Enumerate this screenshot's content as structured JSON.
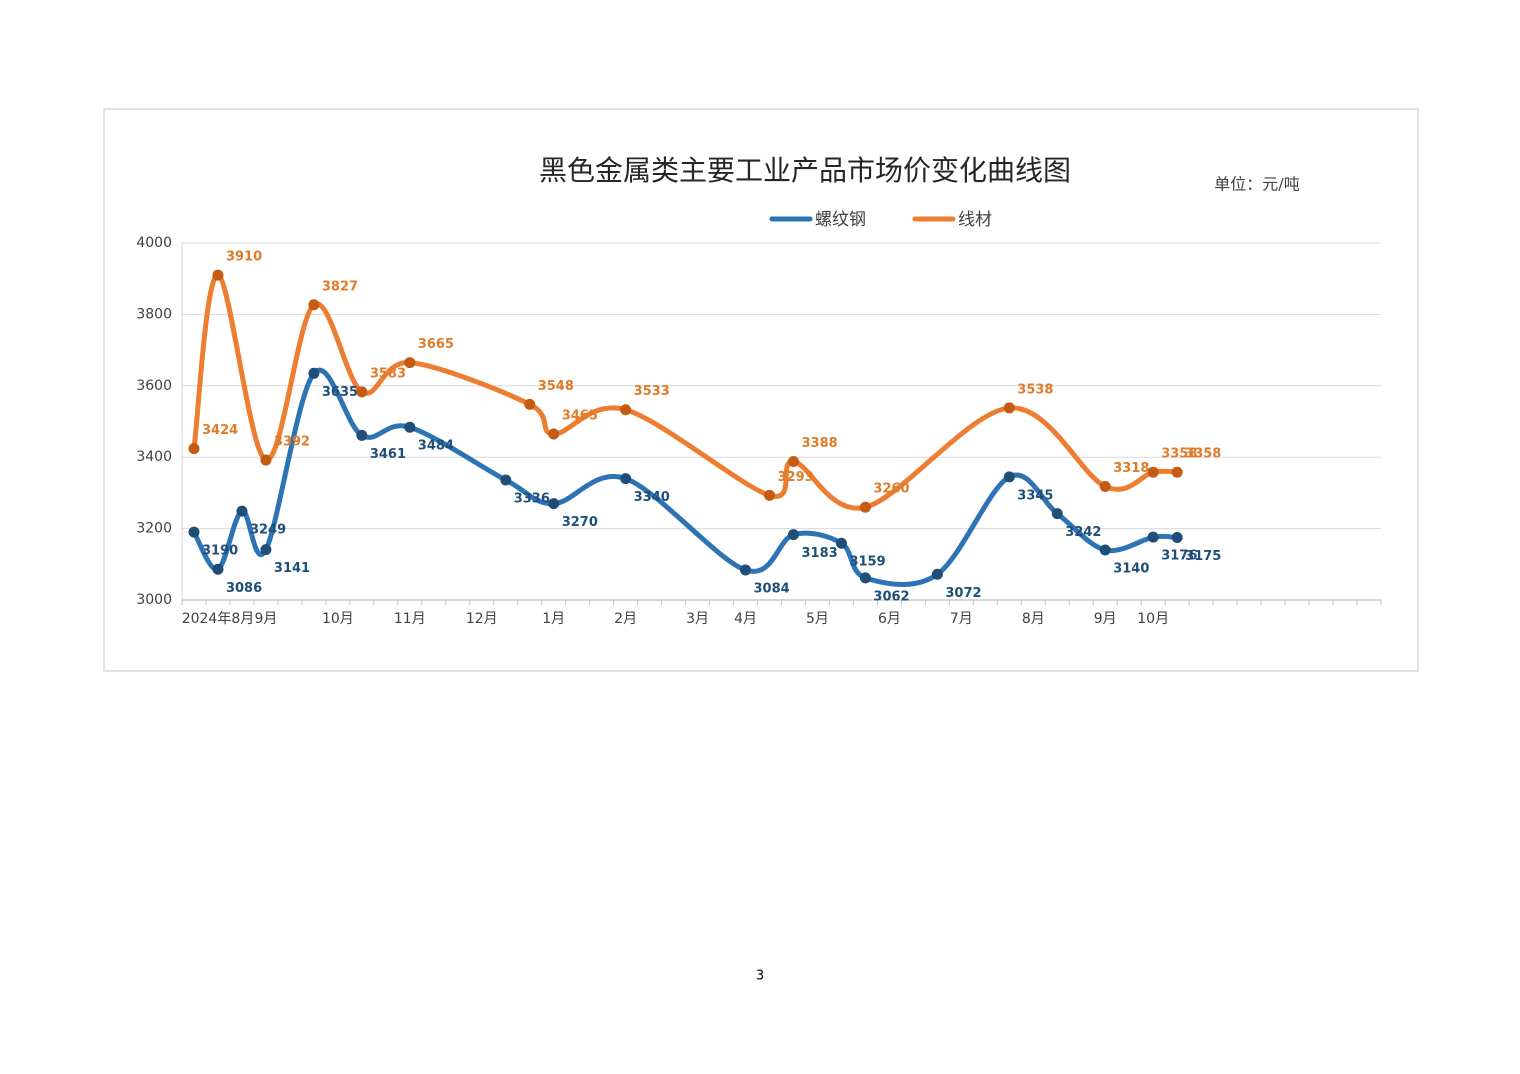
{
  "chart_data": {
    "type": "line",
    "title": "黑色金属类主要工业产品市场价变化曲线图",
    "unit": "单位：元/吨",
    "categories": [
      null,
      "2024年8月",
      null,
      "9月",
      null,
      null,
      "10月",
      null,
      null,
      "11月",
      null,
      null,
      "12月",
      null,
      null,
      "1月",
      null,
      null,
      "2月",
      null,
      null,
      "3月",
      null,
      "4月",
      null,
      null,
      "5月",
      null,
      null,
      "6月",
      null,
      null,
      "7月",
      null,
      null,
      "8月",
      null,
      null,
      "9月",
      null,
      "10月",
      null,
      null,
      null,
      null,
      null,
      null,
      null,
      null,
      null
    ],
    "series": [
      {
        "name": "螺纹钢",
        "color": "#2e74b5",
        "marker_color": "#1f4e79",
        "values": [
          3190,
          3086,
          3249,
          3141,
          null,
          3635,
          null,
          3461,
          null,
          3484,
          null,
          null,
          null,
          3336,
          null,
          3270,
          null,
          null,
          3340,
          null,
          null,
          null,
          null,
          3084,
          null,
          3183,
          null,
          3159,
          3062,
          null,
          null,
          3072,
          null,
          null,
          3345,
          null,
          3242,
          null,
          3140,
          null,
          3176,
          3175,
          null,
          null,
          null,
          null,
          null,
          null,
          null,
          null
        ]
      },
      {
        "name": "线材",
        "color": "#ed7d31",
        "marker_color": "#c55a11",
        "values": [
          3424,
          3910,
          null,
          3392,
          null,
          3827,
          null,
          3583,
          null,
          3665,
          null,
          null,
          null,
          null,
          3548,
          3465,
          null,
          null,
          3533,
          null,
          null,
          null,
          null,
          null,
          3293,
          3388,
          null,
          null,
          3260,
          null,
          null,
          null,
          null,
          null,
          3538,
          null,
          null,
          null,
          3318,
          null,
          3358,
          3358,
          null,
          null,
          null,
          null,
          null,
          null,
          null,
          null
        ]
      }
    ],
    "ylim": [
      3000,
      4000
    ],
    "yticks": [
      3000,
      3200,
      3400,
      3600,
      3800,
      4000
    ],
    "grid": true,
    "span_gaps": true,
    "smooth": true
  },
  "page_number": "3"
}
